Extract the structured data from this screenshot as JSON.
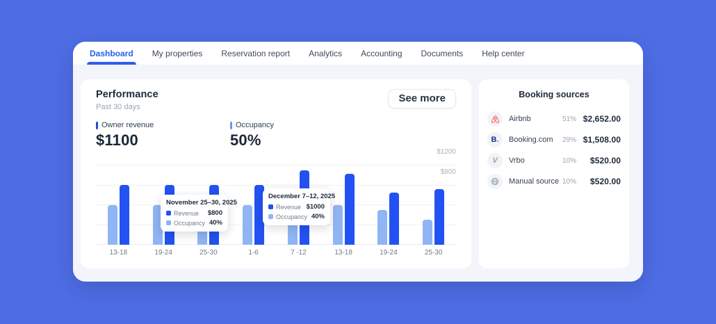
{
  "colors": {
    "page_background": "#4e6de4",
    "active_tab": "#2262e8",
    "revenue_bar": "#2252f1",
    "occupancy_bar": "#8fb5f3",
    "heading_text": "#1d2939",
    "muted_text": "#9aa4b2",
    "airbnb_red": "#ff5a5f"
  },
  "nav": {
    "tabs": [
      {
        "label": "Dashboard",
        "active": true
      },
      {
        "label": "My properties",
        "active": false
      },
      {
        "label": "Reservation report",
        "active": false
      },
      {
        "label": "Analytics",
        "active": false
      },
      {
        "label": "Accounting",
        "active": false
      },
      {
        "label": "Documents",
        "active": false
      },
      {
        "label": "Help center",
        "active": false
      }
    ]
  },
  "performance": {
    "title": "Performance",
    "subtitle": "Past 30 days",
    "see_more_label": "See more",
    "kpis": [
      {
        "label": "Owner revenue",
        "value": "$1100"
      },
      {
        "label": "Occupancy",
        "value": "50%"
      }
    ],
    "tooltips": [
      {
        "title": "November 25–30, 2025",
        "rows": [
          {
            "label": "Revenue",
            "value": "$800"
          },
          {
            "label": "Occupancy",
            "value": "40%"
          }
        ]
      },
      {
        "title": "December 7–12, 2025",
        "rows": [
          {
            "label": "Revenue",
            "value": "$1000"
          },
          {
            "label": "Occupancy",
            "value": "40%"
          }
        ]
      }
    ]
  },
  "chart_data": {
    "type": "bar",
    "categories": [
      "13-18",
      "19-24",
      "25-30",
      "1-6",
      "7 -12",
      "13-18",
      "19-24",
      "25-30"
    ],
    "series": [
      {
        "name": "Occupancy",
        "unit": "%",
        "color": "#8fb5f3",
        "values": [
          40,
          40,
          40,
          40,
          40,
          40,
          35,
          25
        ]
      },
      {
        "name": "Revenue",
        "unit": "$",
        "color": "#2252f1",
        "values": [
          800,
          800,
          800,
          800,
          1000,
          950,
          700,
          750
        ]
      }
    ],
    "ylabel_ticks": [
      "$1200",
      "$800"
    ],
    "ylim_revenue": [
      0,
      1200
    ],
    "ylim_occupancy": [
      0,
      100
    ],
    "grid": true,
    "legend_position": "none",
    "title": "Performance – Past 30 days"
  },
  "booking_sources": {
    "title": "Booking sources",
    "items": [
      {
        "name": "Airbnb",
        "icon": "airbnb-icon",
        "pct": "51%",
        "amount": "$2,652.00"
      },
      {
        "name": "Booking.com",
        "icon": "booking-icon",
        "pct": "29%",
        "amount": "$1,508.00"
      },
      {
        "name": "Vrbo",
        "icon": "vrbo-icon",
        "pct": "10%",
        "amount": "$520.00"
      },
      {
        "name": "Manual source",
        "icon": "globe-icon",
        "pct": "10%",
        "amount": "$520.00"
      }
    ]
  }
}
